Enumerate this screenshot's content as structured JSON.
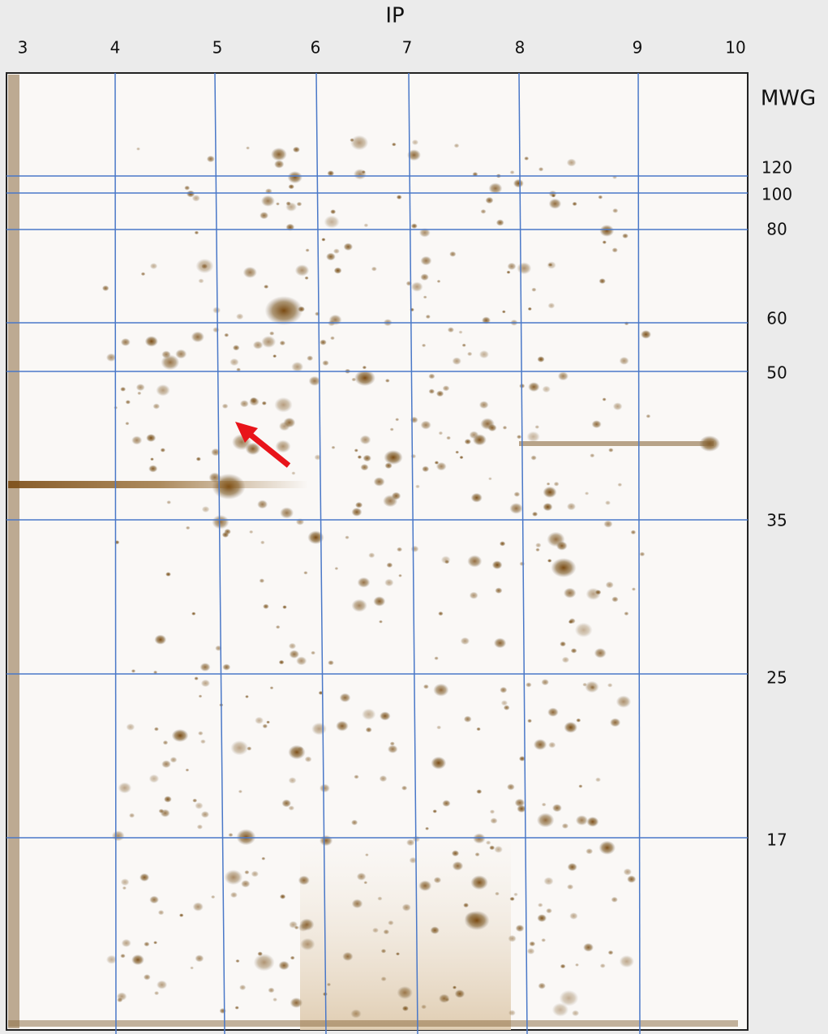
{
  "top_axis": {
    "title": "IP",
    "labels": [
      "3",
      "4",
      "5",
      "6",
      "7",
      "8",
      "9",
      "10"
    ]
  },
  "right_axis": {
    "title": "MWG",
    "labels": [
      "120",
      "100",
      "80",
      "60",
      "50",
      "35",
      "25",
      "17"
    ]
  }
}
